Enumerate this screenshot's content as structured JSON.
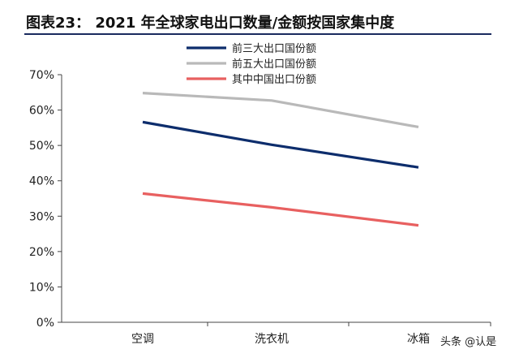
{
  "header": {
    "title": "图表23：  2021 年全球家电出口数量/金额按国家集中度"
  },
  "watermark": {
    "text": "头条 @认是"
  },
  "chart_data": {
    "type": "line",
    "title": "图表23：  2021 年全球家电出口数量/金额按国家集中度",
    "categories": [
      "空调",
      "洗衣机",
      "冰箱"
    ],
    "ylim": [
      0,
      70
    ],
    "yticks": [
      "0%",
      "10%",
      "20%",
      "30%",
      "40%",
      "50%",
      "60%",
      "70%"
    ],
    "ytick_values": [
      0,
      10,
      20,
      30,
      40,
      50,
      60,
      70
    ],
    "grid": false,
    "legend_position": "top-center",
    "series": [
      {
        "name": "前三大出口国份额",
        "color": "#0d2d6c",
        "values": [
          56.6,
          50.2,
          43.8
        ]
      },
      {
        "name": "前五大出口国份额",
        "color": "#b9b9b9",
        "values": [
          64.8,
          62.7,
          55.2
        ]
      },
      {
        "name": "其中中国出口份额",
        "color": "#e86060",
        "values": [
          36.4,
          32.5,
          27.4
        ]
      }
    ]
  }
}
